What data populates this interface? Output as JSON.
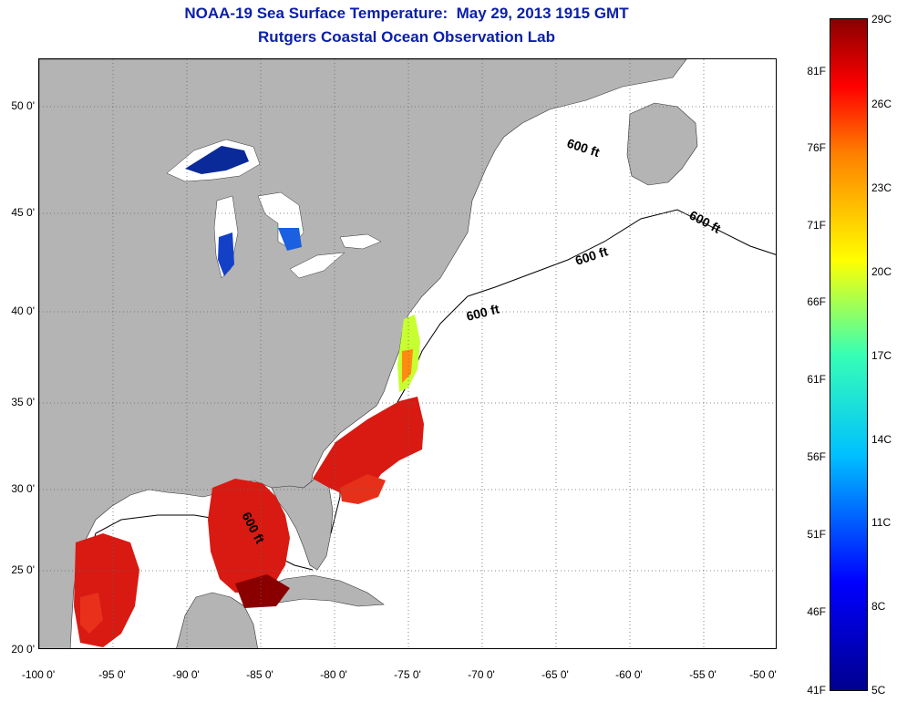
{
  "title": {
    "line1": "NOAA-19 Sea Surface Temperature:  May 29, 2013 1915 GMT",
    "line2": "Rutgers Coastal Ocean Observation Lab"
  },
  "axes": {
    "lat_labels": [
      "50 0'",
      "45 0'",
      "40 0'",
      "35 0'",
      "30 0'",
      "25 0'",
      "20 0'"
    ],
    "lon_labels": [
      "-100 0'",
      "-95 0'",
      "-90 0'",
      "-85 0'",
      "-80 0'",
      "-75 0'",
      "-70 0'",
      "-65 0'",
      "-60 0'",
      "-55 0'",
      "-50 0'"
    ],
    "grid": "dotted"
  },
  "contour_labels": [
    "600 ft",
    "600 ft",
    "600 ft",
    "600 ft",
    "600 ft"
  ],
  "colorbar": {
    "celsius_labels": [
      "29C",
      "26C",
      "23C",
      "20C",
      "17C",
      "14C",
      "11C",
      "8C",
      "5C"
    ],
    "fahrenheit_labels": [
      "81F",
      "76F",
      "71F",
      "66F",
      "61F",
      "56F",
      "51F",
      "46F",
      "41F"
    ],
    "range_c": [
      5,
      29
    ]
  },
  "colors": {
    "title": "#0b1fa8",
    "land": "#b4b4b4",
    "no_data": "#ffffff",
    "warm": "#d81a12",
    "hot": "#8a0000",
    "cold": "#0a2a9a"
  }
}
